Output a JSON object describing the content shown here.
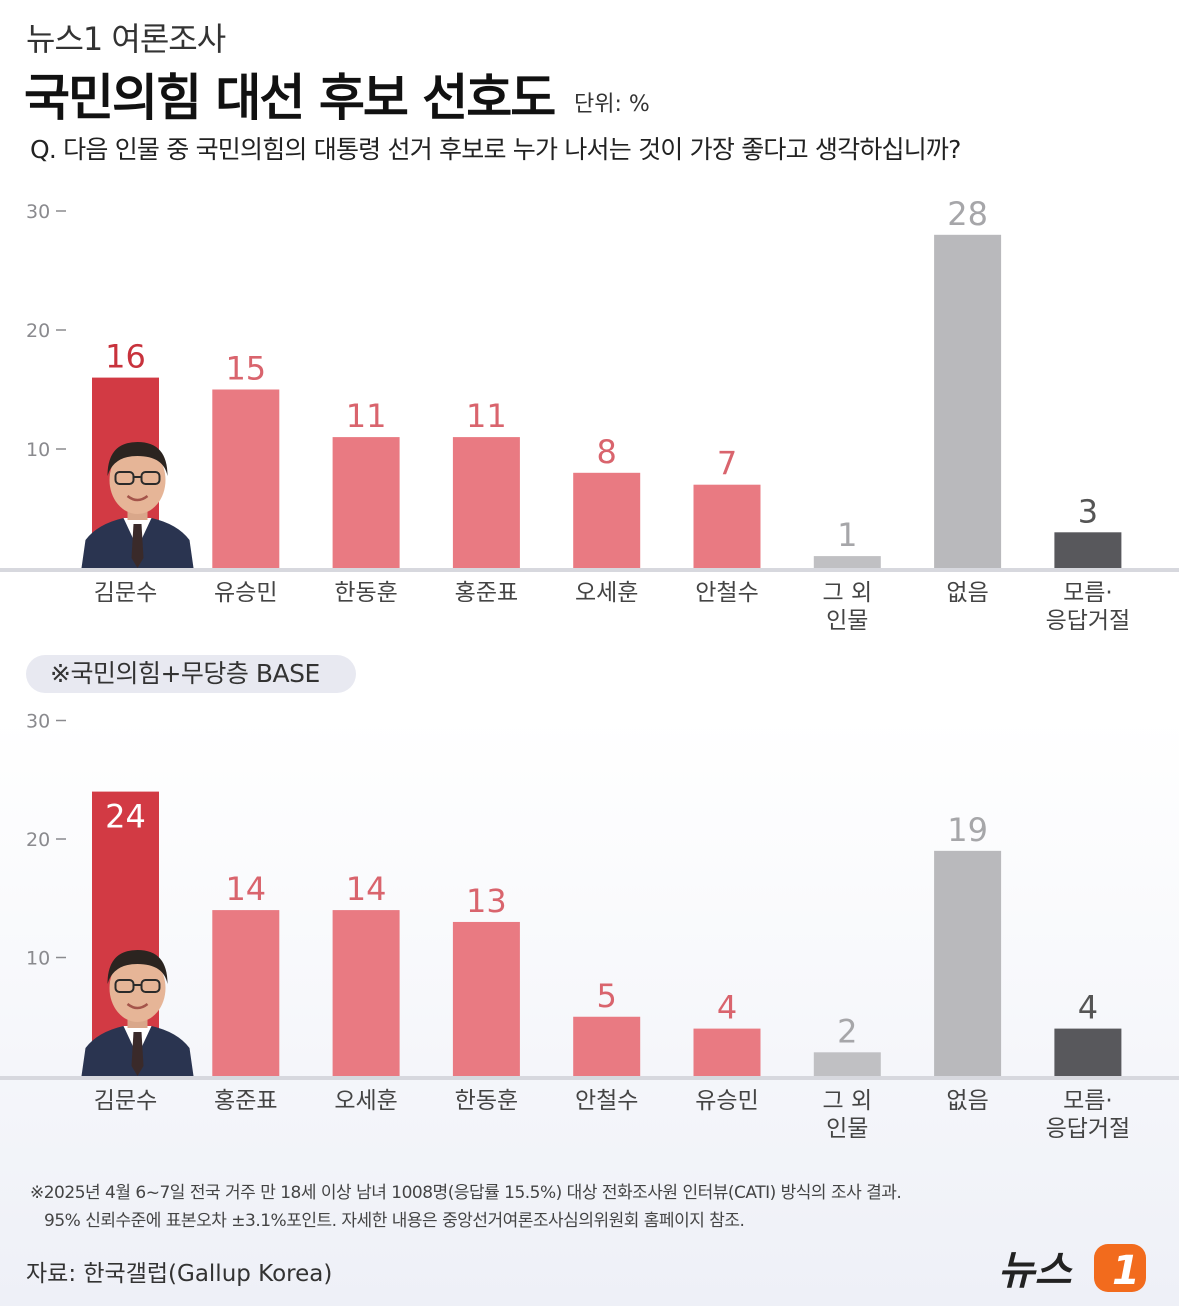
{
  "header": {
    "subtitle": "뉴스1 여론조사",
    "title": "국민의힘 대선 후보 선호도",
    "unit": "단위: %",
    "question": "Q. 다음 인물 중 국민의힘의 대통령 선거 후보로 누가 나서는 것이 가장 좋다고 생각하십니까?"
  },
  "base_label": "※국민의힘+무당층 BASE",
  "footnote": {
    "line1": "※2025년 4월 6~7일 전국 거주 만 18세 이상 남녀 1008명(응답률 15.5%) 대상 전화조사원 인터뷰(CATI) 방식의 조사 결과.",
    "line2": "95% 신뢰수준에 표본오차 ±3.1%포인트. 자세한 내용은 중앙선거여론조사심의위원회 홈페이지 참조."
  },
  "source": "자료: 한국갤럽(Gallup Korea)",
  "logo": {
    "text": "뉴스",
    "mark": "1"
  },
  "colors": {
    "highlight": "#d23a44",
    "candidate": "#e97a82",
    "other": "#c0c0c3",
    "none": "#b9b9bc",
    "unknown": "#58585c",
    "highlight_label": "#c8323c",
    "candidate_label": "#d9646d",
    "gray_label": "#a6a6a9",
    "unknown_label": "#555555",
    "logo_orange": "#f26b1d"
  },
  "chart_data": [
    {
      "type": "bar",
      "ylim": [
        0,
        30
      ],
      "yticks": [
        10,
        20,
        30
      ],
      "categories": [
        [
          "김문수"
        ],
        [
          "유승민"
        ],
        [
          "한동훈"
        ],
        [
          "홍준표"
        ],
        [
          "오세훈"
        ],
        [
          "안철수"
        ],
        [
          "그 외",
          "인물"
        ],
        [
          "없음"
        ],
        [
          "모름·",
          "응답거절"
        ]
      ],
      "values": [
        16,
        15,
        11,
        11,
        8,
        7,
        1,
        28,
        3
      ],
      "kinds": [
        "highlight",
        "candidate",
        "candidate",
        "candidate",
        "candidate",
        "candidate",
        "other",
        "none",
        "unknown"
      ],
      "photo_index": 0
    },
    {
      "type": "bar",
      "ylim": [
        0,
        30
      ],
      "yticks": [
        10,
        20,
        30
      ],
      "categories": [
        [
          "김문수"
        ],
        [
          "홍준표"
        ],
        [
          "오세훈"
        ],
        [
          "한동훈"
        ],
        [
          "안철수"
        ],
        [
          "유승민"
        ],
        [
          "그 외",
          "인물"
        ],
        [
          "없음"
        ],
        [
          "모름·",
          "응답거절"
        ]
      ],
      "values": [
        24,
        14,
        14,
        13,
        5,
        4,
        2,
        19,
        4
      ],
      "kinds": [
        "highlight",
        "candidate",
        "candidate",
        "candidate",
        "candidate",
        "candidate",
        "other",
        "none",
        "unknown"
      ],
      "photo_index": 0
    }
  ]
}
